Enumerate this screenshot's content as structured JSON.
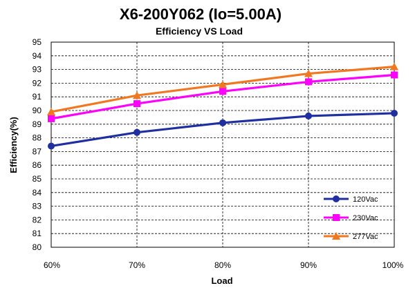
{
  "chart_data": {
    "type": "line",
    "title": "X6-200Y062 (Io=5.00A)",
    "subtitle": "Efficiency VS  Load",
    "xlabel": "Load",
    "ylabel": "Efficiency(%)",
    "categories": [
      "60%",
      "70%",
      "80%",
      "90%",
      "100%"
    ],
    "ylim": [
      80,
      95
    ],
    "yticks": [
      80,
      81,
      82,
      83,
      84,
      85,
      86,
      87,
      88,
      89,
      90,
      91,
      92,
      93,
      94,
      95
    ],
    "grid": true,
    "legend_position": "bottom-right",
    "series": [
      {
        "name": "120Vac",
        "color": "#1f2fa0",
        "marker": "circle",
        "values": [
          87.4,
          88.4,
          89.1,
          89.6,
          89.8
        ]
      },
      {
        "name": "230Vac",
        "color": "#ff00ff",
        "marker": "square",
        "values": [
          89.4,
          90.5,
          91.4,
          92.1,
          92.6
        ]
      },
      {
        "name": "277Vac",
        "color": "#f07820",
        "marker": "triangle",
        "values": [
          89.9,
          91.1,
          91.9,
          92.7,
          93.2
        ]
      }
    ]
  }
}
